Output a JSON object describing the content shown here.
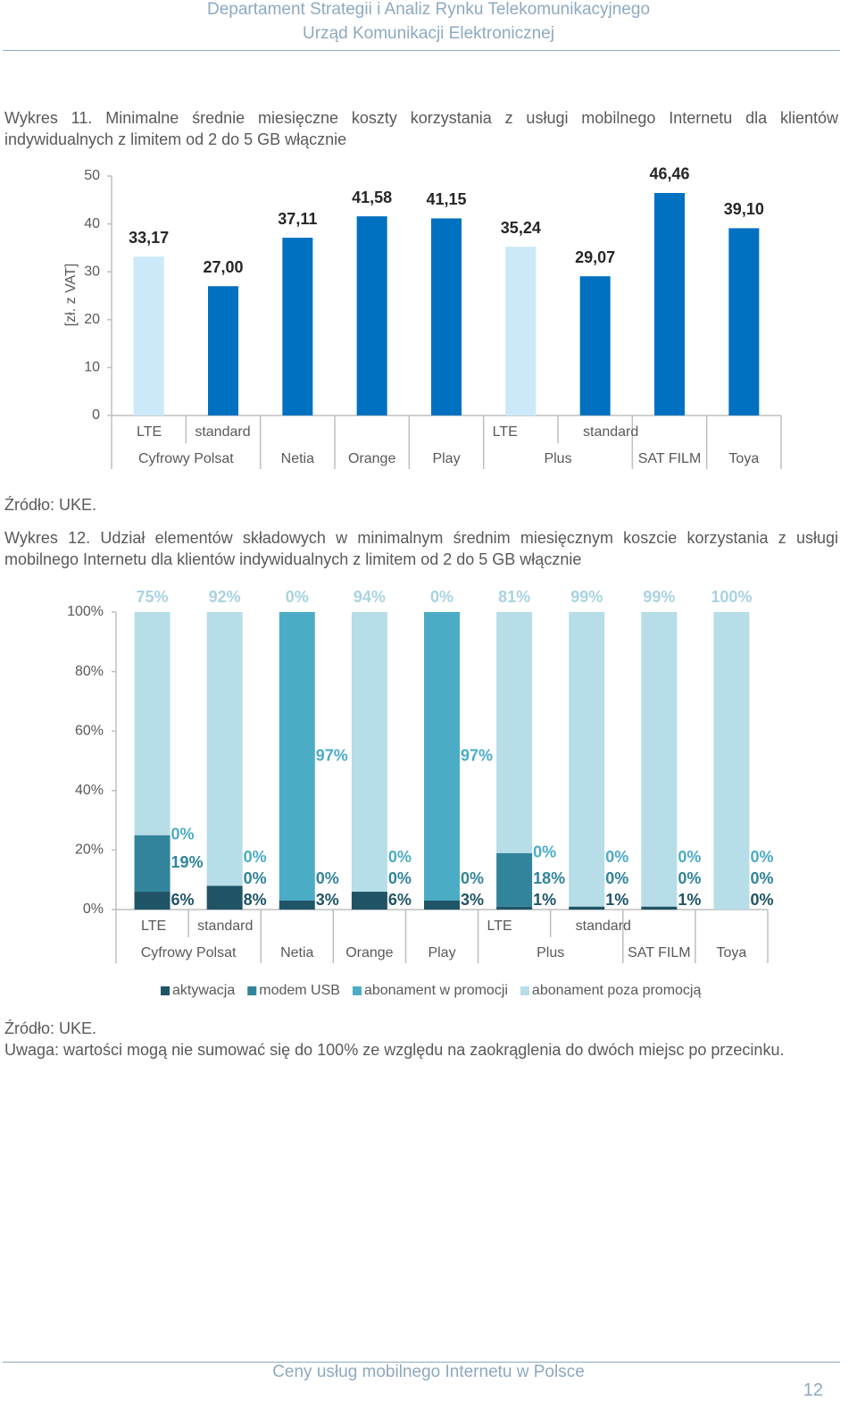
{
  "header": {
    "line1": "Departament Strategii i Analiz Rynku Telekomunikacyjnego",
    "line2": "Urząd Komunikacji Elektronicznej"
  },
  "figure1": {
    "caption": "Wykres 11. Minimalne średnie miesięczne koszty korzystania z usługi mobilnego Internetu dla klientów indywidualnych z limitem od 2 do 5 GB włącznie",
    "source": "Źródło: UKE."
  },
  "figure2": {
    "caption": "Wykres 12. Udział elementów składowych w minimalnym średnim miesięcznym koszcie korzystania z usługi mobilnego Internetu dla klientów indywidualnych z limitem od 2 do 5 GB włącznie",
    "source": "Źródło: UKE.",
    "note": "Uwaga: wartości mogą nie sumować się do 100% ze względu na zaokrąglenia do dwóch miejsc po przecinku."
  },
  "chart_data": [
    {
      "type": "bar",
      "y_label": "[zł. z VAT]",
      "categories": [
        "LTE",
        "standard",
        null,
        null,
        null,
        "LTE",
        "standard",
        null,
        null
      ],
      "groups": [
        "Cyfrowy Polsat",
        "Cyfrowy Polsat",
        "Netia",
        "Orange",
        "Play",
        "Plus",
        "Plus",
        "SAT FILM",
        "Toya"
      ],
      "values": [
        33.17,
        27.0,
        37.11,
        41.58,
        41.15,
        35.24,
        29.07,
        46.46,
        39.1
      ],
      "value_labels": [
        "33,17",
        "27,00",
        "37,11",
        "41,58",
        "41,15",
        "35,24",
        "29,07",
        "46,46",
        "39,10"
      ],
      "colors": [
        "#cce9f9",
        "#0070c0",
        "#0070c0",
        "#0070c0",
        "#0070c0",
        "#cce9f9",
        "#0070c0",
        "#0070c0",
        "#0070c0"
      ],
      "ylim": [
        0,
        50
      ],
      "yticks": [
        0,
        10,
        20,
        30,
        40,
        50
      ],
      "grid": false
    },
    {
      "type": "stacked_bar",
      "categories": [
        "LTE",
        "standard",
        null,
        null,
        null,
        "LTE",
        "standard",
        null,
        null
      ],
      "groups": [
        "Cyfrowy Polsat",
        "Cyfrowy Polsat",
        "Netia",
        "Orange",
        "Play",
        "Plus",
        "Plus",
        "SAT FILM",
        "Toya"
      ],
      "series": [
        {
          "name": "aktywacja",
          "color": "#1f5466",
          "label_color": "#1f5466",
          "values": [
            6,
            8,
            3,
            6,
            3,
            1,
            1,
            1,
            0
          ],
          "value_labels": [
            "6%",
            "8%",
            "3%",
            "6%",
            "3%",
            "1%",
            "1%",
            "1%",
            "0%"
          ]
        },
        {
          "name": "modem USB",
          "color": "#31849b",
          "label_color": "#31849b",
          "values": [
            19,
            0,
            0,
            0,
            0,
            18,
            0,
            0,
            0
          ],
          "value_labels": [
            "19%",
            "0%",
            "0%",
            "0%",
            "0%",
            "18%",
            "0%",
            "0%",
            "0%"
          ]
        },
        {
          "name": "abonament w promocji",
          "color": "#4bacc6",
          "label_color": "#4bacc6",
          "values": [
            0,
            0,
            97,
            0,
            97,
            0,
            0,
            0,
            0
          ],
          "value_labels": [
            "0%",
            "0%",
            "97%",
            "0%",
            "97%",
            "0%",
            "0%",
            "0%",
            "0%"
          ]
        },
        {
          "name": "abonament poza promocją",
          "color": "#b7dde8",
          "label_color": "#a9d3e2",
          "values": [
            75,
            92,
            0,
            94,
            0,
            81,
            99,
            99,
            100
          ],
          "value_labels": [
            "75%",
            "92%",
            "0%",
            "94%",
            "0%",
            "81%",
            "99%",
            "99%",
            "100%"
          ]
        }
      ],
      "ylim": [
        0,
        100
      ],
      "yticks": [
        {
          "value": 0,
          "label": "0%"
        },
        {
          "value": 20,
          "label": "20%"
        },
        {
          "value": 40,
          "label": "40%"
        },
        {
          "value": 60,
          "label": "60%"
        },
        {
          "value": 80,
          "label": "80%"
        },
        {
          "value": 100,
          "label": "100%"
        }
      ],
      "grid": false,
      "legend": "bottom"
    }
  ],
  "footer": {
    "title": "Ceny usług mobilnego Internetu w Polsce",
    "page": 12
  }
}
